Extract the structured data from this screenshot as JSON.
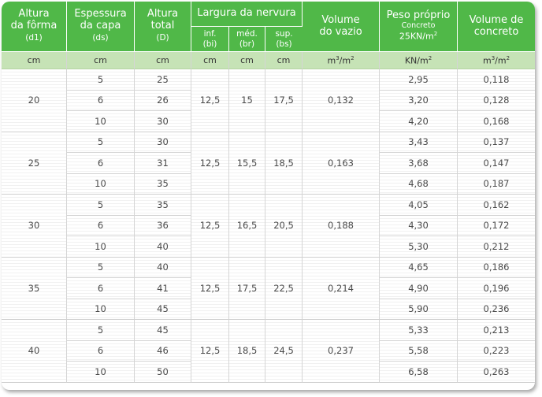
{
  "header": {
    "altura_forma": [
      "Altura",
      "da fôrma",
      "(d1)"
    ],
    "espessura_capa": [
      "Espessura",
      "da capa",
      "(ds)"
    ],
    "altura_total": [
      "Altura",
      "total",
      "(D)"
    ],
    "largura_nervura": "Largura da nervura",
    "inf": [
      "inf.",
      "(bi)"
    ],
    "med": [
      "méd.",
      "(br)"
    ],
    "sup": [
      "sup.",
      "(bs)"
    ],
    "volume_vazio": [
      "Volume",
      "do  vazio"
    ],
    "peso_proprio": [
      "Peso próprio",
      "Concreto",
      "25KN/m"
    ],
    "volume_concreto": [
      "Volume de",
      "concreto"
    ]
  },
  "units": {
    "d1": "cm",
    "ds": "cm",
    "D": "cm",
    "bi": "cm",
    "br": "cm",
    "bs": "cm",
    "vazio_base": "m",
    "vazio_tail": "/m",
    "peso_base": "KN/m",
    "concreto_base": "m",
    "concreto_tail": "/m",
    "sup_3": "3",
    "sup_2": "2"
  },
  "groups": [
    {
      "d1": "20",
      "bi": "12,5",
      "br": "15",
      "bs": "17,5",
      "vazio": "0,132",
      "rows": [
        {
          "ds": "5",
          "D": "25",
          "peso": "2,95",
          "vol": "0,118"
        },
        {
          "ds": "6",
          "D": "26",
          "peso": "3,20",
          "vol": "0,128"
        },
        {
          "ds": "10",
          "D": "30",
          "peso": "4,20",
          "vol": "0,168"
        }
      ]
    },
    {
      "d1": "25",
      "bi": "12,5",
      "br": "15,5",
      "bs": "18,5",
      "vazio": "0,163",
      "rows": [
        {
          "ds": "5",
          "D": "30",
          "peso": "3,43",
          "vol": "0,137"
        },
        {
          "ds": "6",
          "D": "31",
          "peso": "3,68",
          "vol": "0,147"
        },
        {
          "ds": "10",
          "D": "35",
          "peso": "4,68",
          "vol": "0,187"
        }
      ]
    },
    {
      "d1": "30",
      "bi": "12,5",
      "br": "16,5",
      "bs": "20,5",
      "vazio": "0,188",
      "rows": [
        {
          "ds": "5",
          "D": "35",
          "peso": "4,05",
          "vol": "0,162"
        },
        {
          "ds": "6",
          "D": "36",
          "peso": "4,30",
          "vol": "0,172"
        },
        {
          "ds": "10",
          "D": "40",
          "peso": "5,30",
          "vol": "0,212"
        }
      ]
    },
    {
      "d1": "35",
      "bi": "12,5",
      "br": "17,5",
      "bs": "22,5",
      "vazio": "0,214",
      "rows": [
        {
          "ds": "5",
          "D": "40",
          "peso": "4,65",
          "vol": "0,186"
        },
        {
          "ds": "6",
          "D": "41",
          "peso": "4,90",
          "vol": "0,196"
        },
        {
          "ds": "10",
          "D": "45",
          "peso": "5,90",
          "vol": "0,236"
        }
      ]
    },
    {
      "d1": "40",
      "bi": "12,5",
      "br": "18,5",
      "bs": "24,5",
      "vazio": "0,237",
      "rows": [
        {
          "ds": "5",
          "D": "45",
          "peso": "5,33",
          "vol": "0,213"
        },
        {
          "ds": "6",
          "D": "46",
          "peso": "5,58",
          "vol": "0,223"
        },
        {
          "ds": "10",
          "D": "50",
          "peso": "6,58",
          "vol": "0,263"
        }
      ]
    }
  ],
  "colors": {
    "header_green": "#50b848",
    "units_green": "#c6e3b6",
    "text": "#4a4a4a"
  }
}
